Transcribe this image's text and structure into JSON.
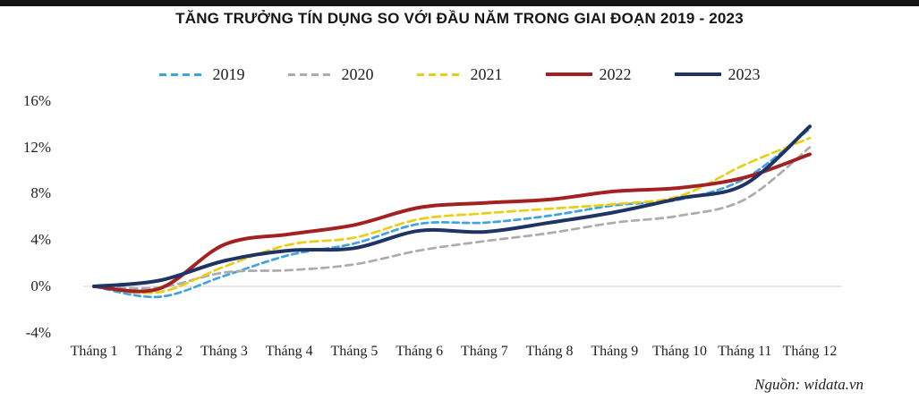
{
  "page": {
    "title": "TĂNG TRƯỞNG TÍN DỤNG SO VỚI ĐẦU NĂM TRONG GIAI ĐOẠN 2019 - 2023",
    "source_label": "Nguồn: widata.vn"
  },
  "colors": {
    "top_bar": "#141414",
    "gridline": "#d9d9d9",
    "axis_text": "#1f1f1f",
    "background": "#ffffff"
  },
  "chart_data": {
    "type": "line",
    "title": "TĂNG TRƯỞNG TÍN DỤNG SO VỚI ĐẦU NĂM TRONG GIAI ĐOẠN 2019 - 2023",
    "categories": [
      "Tháng 1",
      "Tháng 2",
      "Tháng 3",
      "Tháng 4",
      "Tháng 5",
      "Tháng 6",
      "Tháng 7",
      "Tháng 8",
      "Tháng 9",
      "Tháng 10",
      "Tháng 11",
      "Tháng 12"
    ],
    "unit": "%",
    "ylim": [
      -4,
      16
    ],
    "y_ticks": [
      16,
      12,
      8,
      4,
      0,
      -4
    ],
    "y_tick_labels": [
      "16%",
      "12%",
      "8%",
      "4%",
      "0%",
      "-4%"
    ],
    "grid": "single horizontal gridline at 0% only",
    "legend_position": "top",
    "series": [
      {
        "name": "2019",
        "color": "#41a3dd",
        "line_style": "dashed",
        "values": [
          0,
          -0.9,
          0.9,
          2.7,
          3.7,
          5.4,
          5.5,
          6.1,
          7.0,
          7.5,
          9.3,
          13.6
        ]
      },
      {
        "name": "2020",
        "color": "#acacac",
        "line_style": "dashed",
        "values": [
          0,
          -0.1,
          1.2,
          1.4,
          1.9,
          3.1,
          3.9,
          4.6,
          5.5,
          6.1,
          7.5,
          12.0
        ]
      },
      {
        "name": "2021",
        "color": "#e8cf17",
        "line_style": "dashed",
        "values": [
          0,
          -0.5,
          1.7,
          3.6,
          4.2,
          5.8,
          6.3,
          6.7,
          7.1,
          7.8,
          10.5,
          12.8
        ]
      },
      {
        "name": "2022",
        "color": "#a32121",
        "line_style": "solid",
        "values": [
          0,
          -0.2,
          3.6,
          4.5,
          5.3,
          6.8,
          7.2,
          7.5,
          8.2,
          8.5,
          9.4,
          11.4
        ]
      },
      {
        "name": "2023",
        "color": "#1f3364",
        "line_style": "solid",
        "values": [
          0,
          0.5,
          2.2,
          3.1,
          3.3,
          4.8,
          4.7,
          5.5,
          6.4,
          7.6,
          8.8,
          13.8
        ]
      }
    ],
    "source": "Nguồn: widata.vn"
  }
}
